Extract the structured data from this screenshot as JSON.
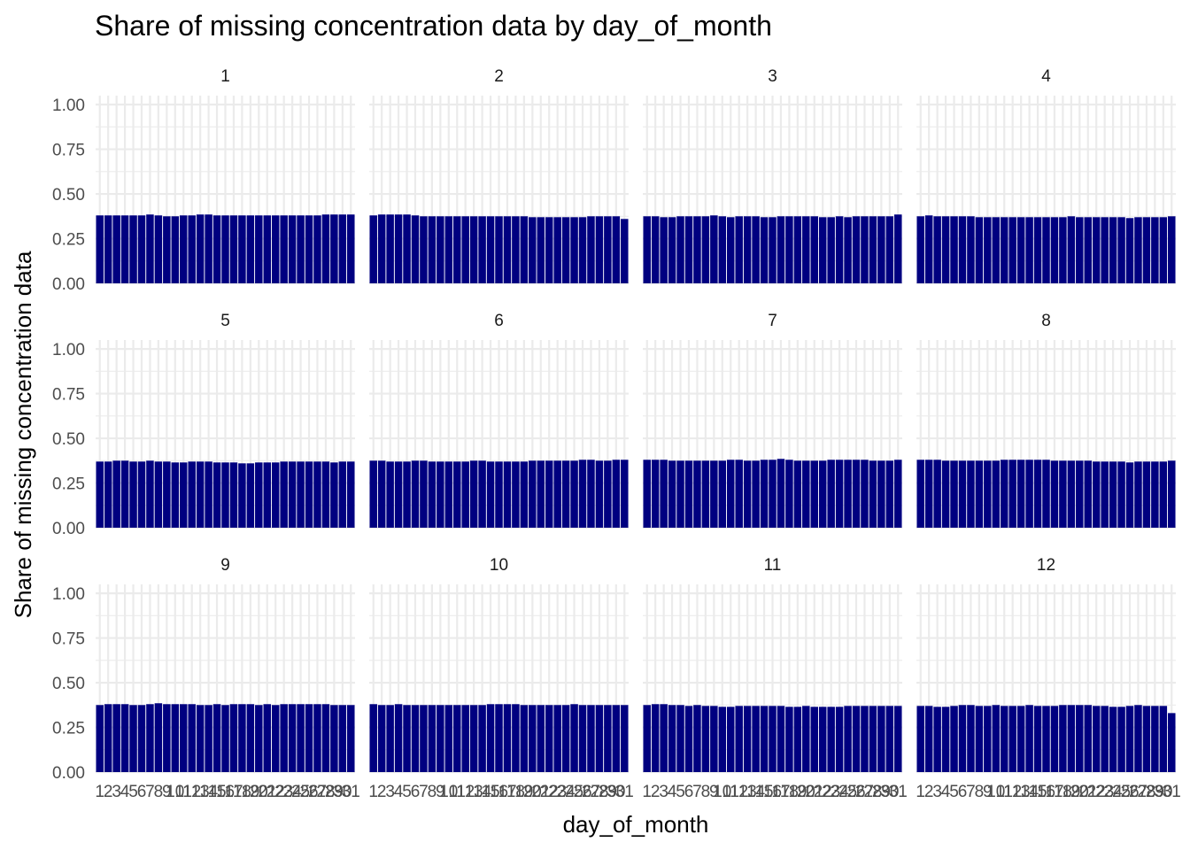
{
  "chart_data": {
    "type": "bar",
    "title": "Share of missing concentration data by day_of_month",
    "xlabel": "day_of_month",
    "ylabel": "Share of missing concentration data",
    "ylim": [
      0,
      1.05
    ],
    "yticks": [
      0,
      0.25,
      0.5,
      0.75,
      1
    ],
    "ytick_labels": [
      "0.00",
      "0.25",
      "0.50",
      "0.75",
      "1.00"
    ],
    "x_categories": [
      "1",
      "2",
      "3",
      "4",
      "5",
      "6",
      "7",
      "8",
      "9",
      "10",
      "11",
      "12",
      "13",
      "14",
      "15",
      "16",
      "17",
      "18",
      "19",
      "20",
      "21",
      "22",
      "23",
      "24",
      "25",
      "26",
      "27",
      "28",
      "29",
      "30",
      "31"
    ],
    "grid": true,
    "legend": "none",
    "bar_color": "#000080",
    "facets": [
      {
        "label": "1",
        "values": [
          0.38,
          0.38,
          0.38,
          0.38,
          0.38,
          0.38,
          0.385,
          0.38,
          0.375,
          0.375,
          0.38,
          0.38,
          0.385,
          0.385,
          0.38,
          0.38,
          0.38,
          0.38,
          0.38,
          0.38,
          0.38,
          0.38,
          0.38,
          0.38,
          0.38,
          0.38,
          0.38,
          0.385,
          0.385,
          0.385,
          0.385
        ]
      },
      {
        "label": "2",
        "values": [
          0.38,
          0.385,
          0.385,
          0.385,
          0.385,
          0.38,
          0.375,
          0.375,
          0.375,
          0.375,
          0.375,
          0.375,
          0.375,
          0.375,
          0.375,
          0.375,
          0.375,
          0.375,
          0.375,
          0.37,
          0.37,
          0.37,
          0.37,
          0.37,
          0.37,
          0.37,
          0.375,
          0.375,
          0.375,
          0.375,
          0.36
        ]
      },
      {
        "label": "3",
        "values": [
          0.375,
          0.375,
          0.37,
          0.37,
          0.375,
          0.375,
          0.375,
          0.375,
          0.38,
          0.375,
          0.37,
          0.375,
          0.375,
          0.375,
          0.37,
          0.37,
          0.375,
          0.375,
          0.375,
          0.375,
          0.375,
          0.37,
          0.37,
          0.375,
          0.37,
          0.375,
          0.375,
          0.375,
          0.375,
          0.375,
          0.385
        ]
      },
      {
        "label": "4",
        "values": [
          0.375,
          0.38,
          0.375,
          0.375,
          0.375,
          0.375,
          0.375,
          0.37,
          0.37,
          0.37,
          0.37,
          0.37,
          0.37,
          0.37,
          0.37,
          0.37,
          0.37,
          0.37,
          0.375,
          0.37,
          0.37,
          0.37,
          0.37,
          0.37,
          0.37,
          0.365,
          0.37,
          0.37,
          0.37,
          0.37,
          0.375
        ]
      },
      {
        "label": "5",
        "values": [
          0.37,
          0.37,
          0.375,
          0.375,
          0.37,
          0.37,
          0.375,
          0.37,
          0.37,
          0.365,
          0.365,
          0.37,
          0.37,
          0.37,
          0.365,
          0.365,
          0.365,
          0.36,
          0.36,
          0.365,
          0.365,
          0.365,
          0.37,
          0.37,
          0.37,
          0.37,
          0.37,
          0.37,
          0.365,
          0.37,
          0.37
        ]
      },
      {
        "label": "6",
        "values": [
          0.375,
          0.375,
          0.37,
          0.37,
          0.37,
          0.375,
          0.375,
          0.37,
          0.37,
          0.37,
          0.37,
          0.37,
          0.375,
          0.375,
          0.37,
          0.37,
          0.37,
          0.37,
          0.37,
          0.375,
          0.375,
          0.375,
          0.375,
          0.375,
          0.375,
          0.38,
          0.38,
          0.375,
          0.375,
          0.38,
          0.38
        ]
      },
      {
        "label": "7",
        "values": [
          0.38,
          0.38,
          0.38,
          0.375,
          0.375,
          0.375,
          0.375,
          0.375,
          0.375,
          0.375,
          0.38,
          0.38,
          0.375,
          0.375,
          0.38,
          0.38,
          0.385,
          0.38,
          0.375,
          0.375,
          0.375,
          0.375,
          0.38,
          0.38,
          0.38,
          0.38,
          0.38,
          0.375,
          0.375,
          0.375,
          0.38
        ]
      },
      {
        "label": "8",
        "values": [
          0.38,
          0.38,
          0.38,
          0.375,
          0.375,
          0.375,
          0.375,
          0.375,
          0.375,
          0.375,
          0.38,
          0.38,
          0.38,
          0.38,
          0.38,
          0.38,
          0.375,
          0.375,
          0.375,
          0.375,
          0.375,
          0.37,
          0.37,
          0.37,
          0.37,
          0.365,
          0.37,
          0.37,
          0.37,
          0.37,
          0.375
        ]
      },
      {
        "label": "9",
        "values": [
          0.375,
          0.38,
          0.38,
          0.38,
          0.375,
          0.375,
          0.38,
          0.385,
          0.38,
          0.38,
          0.38,
          0.38,
          0.375,
          0.375,
          0.38,
          0.375,
          0.38,
          0.38,
          0.38,
          0.375,
          0.38,
          0.375,
          0.38,
          0.38,
          0.38,
          0.38,
          0.38,
          0.38,
          0.375,
          0.375,
          0.375
        ]
      },
      {
        "label": "10",
        "values": [
          0.38,
          0.375,
          0.375,
          0.38,
          0.375,
          0.375,
          0.375,
          0.375,
          0.375,
          0.375,
          0.375,
          0.375,
          0.375,
          0.375,
          0.38,
          0.38,
          0.38,
          0.38,
          0.375,
          0.375,
          0.375,
          0.375,
          0.375,
          0.375,
          0.38,
          0.375,
          0.375,
          0.375,
          0.375,
          0.375,
          0.375
        ]
      },
      {
        "label": "11",
        "values": [
          0.375,
          0.38,
          0.38,
          0.375,
          0.375,
          0.37,
          0.375,
          0.37,
          0.37,
          0.365,
          0.365,
          0.37,
          0.37,
          0.37,
          0.37,
          0.37,
          0.37,
          0.365,
          0.365,
          0.37,
          0.365,
          0.365,
          0.365,
          0.365,
          0.37,
          0.37,
          0.37,
          0.37,
          0.37,
          0.37,
          0.37
        ]
      },
      {
        "label": "12",
        "values": [
          0.37,
          0.37,
          0.365,
          0.365,
          0.37,
          0.375,
          0.375,
          0.37,
          0.37,
          0.375,
          0.37,
          0.37,
          0.37,
          0.375,
          0.37,
          0.37,
          0.37,
          0.375,
          0.375,
          0.375,
          0.375,
          0.37,
          0.37,
          0.365,
          0.365,
          0.37,
          0.375,
          0.37,
          0.37,
          0.37,
          0.33
        ]
      }
    ]
  }
}
